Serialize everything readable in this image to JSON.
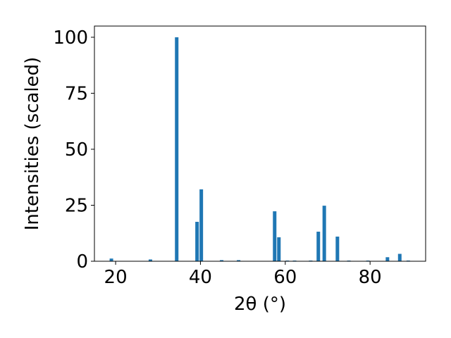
{
  "chart_data": {
    "type": "bar",
    "x_label": "2θ (°)",
    "y_label": "Intensities (scaled)",
    "x": [
      19.0,
      28.2,
      34.4,
      39.2,
      40.2,
      45.0,
      49.0,
      57.5,
      58.5,
      60.5,
      62.2,
      66.0,
      67.8,
      69.2,
      72.3,
      75.0,
      79.5,
      84.1,
      87.0,
      89.0
    ],
    "values": [
      1.2,
      0.8,
      100,
      17.6,
      32.1,
      0.5,
      0.5,
      22.3,
      10.7,
      0.3,
      0.3,
      0.3,
      13.2,
      24.8,
      11.0,
      0.3,
      0.3,
      1.8,
      3.3,
      0.3
    ],
    "color": "#1f77b4",
    "xlim": [
      15.0,
      93.1
    ],
    "ylim": [
      0,
      105
    ],
    "xticks": [
      20,
      40,
      60,
      80
    ],
    "yticks": [
      0,
      25,
      50,
      75,
      100
    ]
  }
}
